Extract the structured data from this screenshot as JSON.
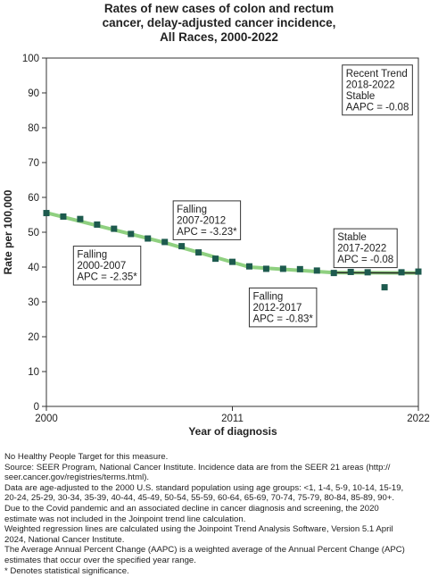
{
  "chart_data": {
    "type": "scatter",
    "title": [
      "Rates of new cases of colon and rectum",
      "cancer, delay-adjusted cancer incidence,",
      "All Races,  2000-2022"
    ],
    "xlabel": "Year of diagnosis",
    "ylabel": "Rate per 100,000",
    "xlim": [
      2000,
      2022
    ],
    "ylim": [
      0,
      100
    ],
    "x_ticks": [
      2000,
      2011,
      2022
    ],
    "y_ticks": [
      0,
      10,
      20,
      30,
      40,
      50,
      60,
      70,
      80,
      90,
      100
    ],
    "grid": false,
    "series": [
      {
        "kind": "observed",
        "x": [
          2000,
          2001,
          2002,
          2003,
          2004,
          2005,
          2006,
          2007,
          2008,
          2009,
          2010,
          2011,
          2012,
          2013,
          2014,
          2015,
          2016,
          2017,
          2018,
          2019,
          2021,
          2022
        ],
        "y": [
          55.5,
          54.5,
          53.8,
          52.2,
          51.0,
          49.5,
          48.2,
          47.2,
          46.0,
          44.2,
          42.4,
          41.5,
          40.2,
          39.5,
          39.5,
          39.4,
          39.0,
          38.3,
          38.6,
          38.5,
          38.5,
          38.7
        ],
        "color": "#1d5a4e"
      },
      {
        "kind": "observed-excluded",
        "x": [
          2020
        ],
        "y": [
          34.2
        ],
        "color": "#1d5a4e"
      },
      {
        "kind": "trend",
        "x": [
          2000,
          2007,
          2012,
          2017,
          2022
        ],
        "y": [
          55.6,
          47.0,
          40.0,
          38.4,
          38.3
        ],
        "color": "#8fd080"
      },
      {
        "kind": "trend-segment",
        "x": [
          2017,
          2022
        ],
        "y": [
          38.4,
          38.3
        ],
        "color": "#222222"
      }
    ],
    "annotations": [
      {
        "lines": [
          "Falling",
          "2000-2007",
          "APC = -2.35*"
        ],
        "x": 2001.6,
        "y": 46
      },
      {
        "lines": [
          "Falling",
          "2007-2012",
          "APC = -3.23*"
        ],
        "x": 2007.5,
        "y": 59
      },
      {
        "lines": [
          "Falling",
          "2012-2017",
          "APC = -0.83*"
        ],
        "x": 2012.0,
        "y": 34
      },
      {
        "lines": [
          "Stable",
          "2017-2022",
          "APC = -0.08"
        ],
        "x": 2017.0,
        "y": 51
      },
      {
        "lines": [
          "Recent Trend",
          "2018-2022",
          "Stable",
          "AAPC = -0.08"
        ],
        "x": 2017.5,
        "y": 98
      }
    ]
  },
  "footnotes": [
    "No Healthy People Target for this measure.",
    "Source: SEER Program, National Cancer Institute. Incidence data are from the SEER 21 areas (http://",
    "seer.cancer.gov/registries/terms.html).",
    "Data are age-adjusted to the 2000 U.S. standard population using age groups: <1, 1-4, 5-9, 10-14, 15-19,",
    "20-24, 25-29, 30-34, 35-39, 40-44, 45-49, 50-54, 55-59, 60-64, 65-69, 70-74, 75-79, 80-84, 85-89, 90+.",
    "Due to the Covid pandemic and an associated decline in cancer diagnosis and screening, the 2020",
    "estimate was not included in the Joinpoint trend line calculation.",
    "Weighted regression lines are calculated using the Joinpoint Trend Analysis Software, Version 5.1 April",
    "2024, National Cancer Institute.",
    "The Average Annual Percent Change (AAPC) is a weighted average of the Annual Percent Change (APC)",
    "estimates that occur over the specified year range.",
    "* Denotes statistical significance."
  ]
}
